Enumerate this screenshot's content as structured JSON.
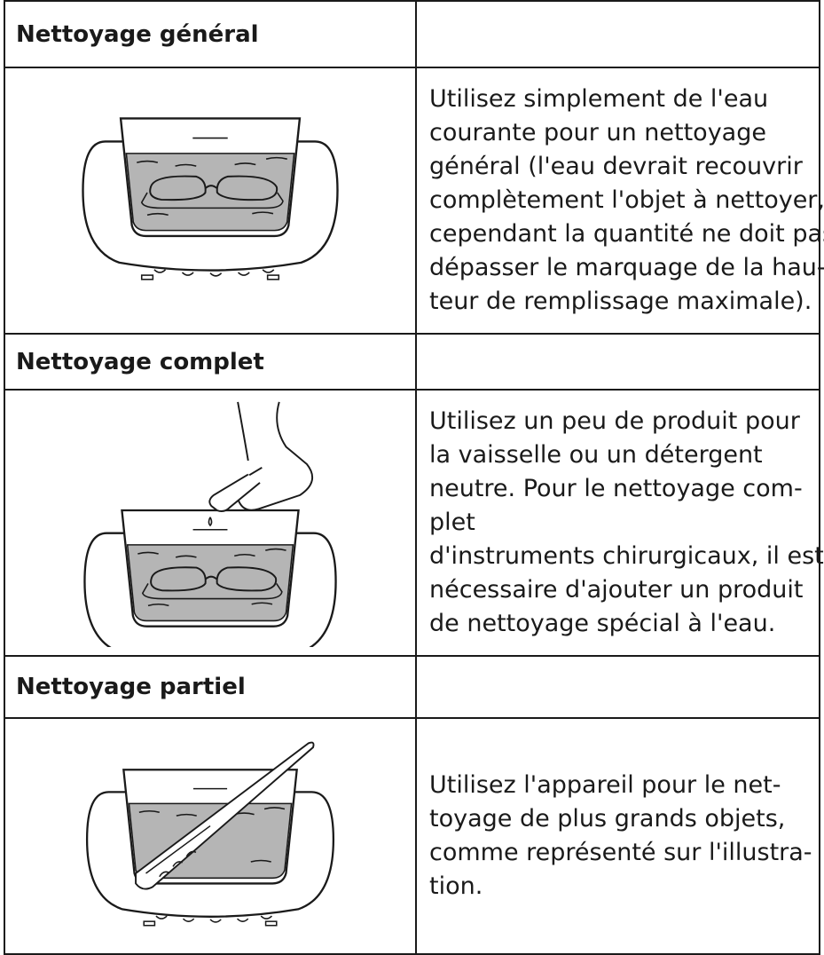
{
  "sections": [
    {
      "heading": "Nettoyage général",
      "lines": [
        "Utilisez simplement de l'eau",
        "courante pour un nettoyage",
        "général (l'eau devrait recouvrir",
        "complètement l'objet à nettoyer,",
        "cependant la quantité ne doit pas",
        "dépasser le marquage de la hau-",
        "teur de remplissage maximale)."
      ]
    },
    {
      "heading": "Nettoyage complet",
      "lines": [
        "Utilisez un peu de produit pour",
        "la vaisselle ou un détergent",
        "neutre. Pour le nettoyage com-",
        "plet",
        "d'instruments chirurgicaux, il est",
        "nécessaire d'ajouter un produit",
        "de nettoyage spécial à l'eau."
      ]
    },
    {
      "heading": "Nettoyage partiel",
      "lines": [
        "Utilisez l'appareil pour le net-",
        "toyage de plus grands objets,",
        "comme représenté sur l'illustra-",
        "tion."
      ]
    }
  ]
}
